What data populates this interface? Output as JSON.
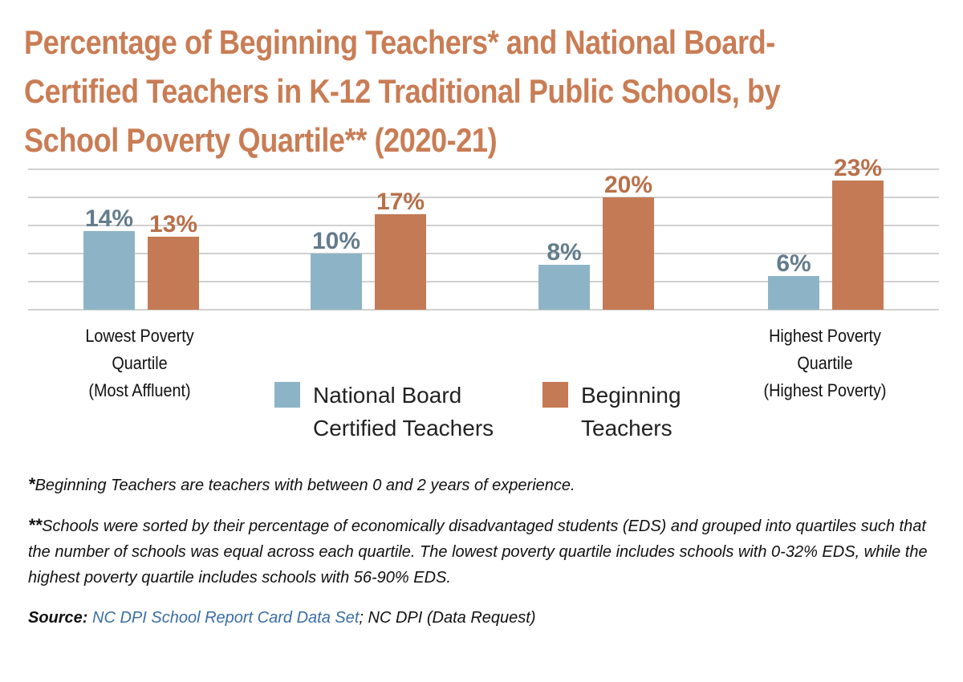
{
  "title_lines": [
    "Percentage of Beginning Teachers* and National Board-",
    "Certified Teachers in K-12 Traditional Public Schools, by",
    "School Poverty Quartile** (2020-21)"
  ],
  "colors": {
    "title": "#c97d55",
    "nbct": "#8db4c6",
    "beginning": "#c47a55",
    "nbct_label": "#647c8c",
    "beginning_label": "#b8704a",
    "grid": "#d0d0d0"
  },
  "chart_data": {
    "type": "bar",
    "categories": [
      "Lowest Poverty Quartile (Most Affluent)",
      "",
      "",
      "Highest Poverty Quartile (Highest Poverty)"
    ],
    "series": [
      {
        "name": "National Board Certified Teachers",
        "values": [
          14,
          10,
          8,
          6
        ],
        "labels": [
          "14%",
          "10%",
          "8%",
          "6%"
        ]
      },
      {
        "name": "Beginning Teachers",
        "values": [
          13,
          17,
          20,
          23
        ],
        "labels": [
          "13%",
          "17%",
          "20%",
          "23%"
        ]
      }
    ],
    "ylim": [
      0,
      25
    ],
    "grid": true,
    "legend": "bottom-center"
  },
  "xcat_lowest": [
    "Lowest Poverty",
    "Quartile",
    "(Most Affluent)"
  ],
  "xcat_highest": [
    "Highest Poverty",
    "Quartile",
    "(Highest Poverty)"
  ],
  "legend": {
    "nbct": [
      "National Board",
      "Certified Teachers"
    ],
    "beginning": [
      "Beginning",
      "Teachers"
    ]
  },
  "notes": {
    "note1_mark": "*",
    "note1_text": "Beginning Teachers are teachers with between 0 and 2 years of experience.",
    "note2_mark": "**",
    "note2_text": "Schools were sorted by their percentage of economically disadvantaged students (EDS) and grouped into quartiles such that the number of schools was equal across each quartile. The lowest poverty quartile includes schools with 0-32% EDS, while the highest poverty quartile includes schools with 56-90% EDS.",
    "source_label": "Source:",
    "source_link": "NC DPI School Report Card Data Set",
    "source_rest": "; NC DPI (Data Request)"
  }
}
